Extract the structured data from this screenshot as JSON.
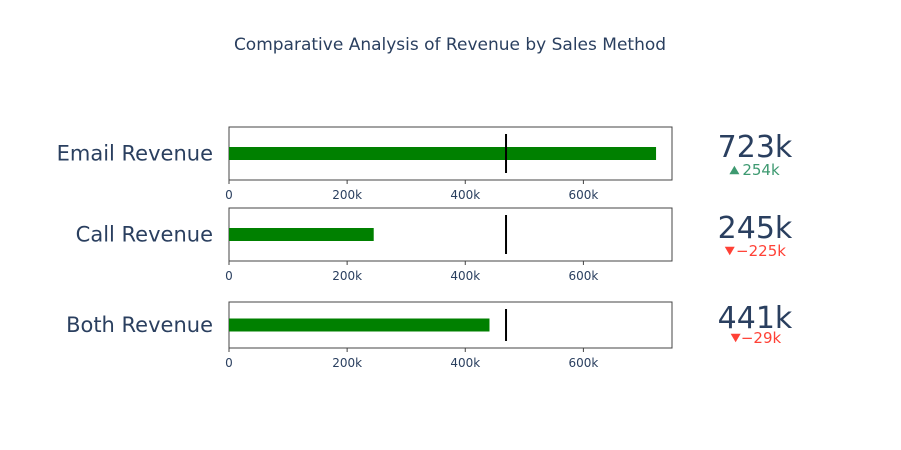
{
  "chart_data": {
    "type": "bullet",
    "title": "Comparative Analysis of Revenue by Sales Method",
    "axis": {
      "range": [
        0,
        750000
      ],
      "tick_values": [
        0,
        200000,
        400000,
        600000
      ],
      "tick_labels": [
        "0",
        "200k",
        "400k",
        "600k"
      ]
    },
    "colors": {
      "bar": "#008000",
      "threshold": "#000000",
      "frame": "#444444",
      "text": "#2a3f5f",
      "increasing": "#3d9970",
      "decreasing": "#ff4136"
    },
    "rows": [
      {
        "label": "Email Revenue",
        "value": 723000,
        "threshold": 469000,
        "display_value": "723k",
        "delta_display": "254k",
        "delta_direction": "up"
      },
      {
        "label": "Call Revenue",
        "value": 245000,
        "threshold": 469000,
        "display_value": "245k",
        "delta_display": "−225k",
        "delta_direction": "down"
      },
      {
        "label": "Both Revenue",
        "value": 441000,
        "threshold": 469000,
        "display_value": "441k",
        "delta_display": "−29k",
        "delta_direction": "down"
      }
    ]
  }
}
